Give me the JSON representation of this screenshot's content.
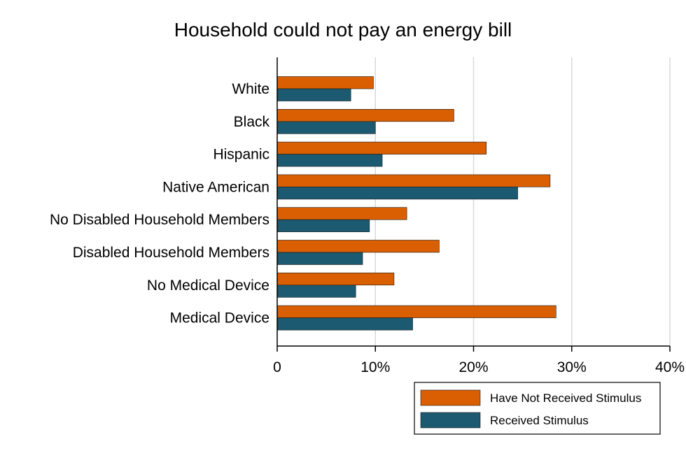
{
  "chart_data": {
    "type": "bar",
    "orientation": "horizontal",
    "title": "Household could not pay an energy bill",
    "xlabel": "",
    "ylabel": "",
    "xlim": [
      0,
      40
    ],
    "x_ticks": [
      0,
      10,
      20,
      30,
      40
    ],
    "x_tick_labels": [
      "0",
      "10%",
      "20%",
      "30%",
      "40%"
    ],
    "grid": true,
    "legend_position": "bottom-right",
    "categories": [
      "White",
      "Black",
      "Hispanic",
      "Native American",
      "No Disabled Household Members",
      "Disabled Household Members",
      "No Medical Device",
      "Medical Device"
    ],
    "series": [
      {
        "name": "Have Not Received Stimulus",
        "color": "#d95f02",
        "values": [
          9.8,
          18.0,
          21.3,
          27.8,
          13.2,
          16.5,
          11.9,
          28.4
        ]
      },
      {
        "name": "Received Stimulus",
        "color": "#1b5a70",
        "values": [
          7.5,
          10.0,
          10.7,
          24.5,
          9.4,
          8.7,
          8.0,
          13.8
        ]
      }
    ]
  }
}
